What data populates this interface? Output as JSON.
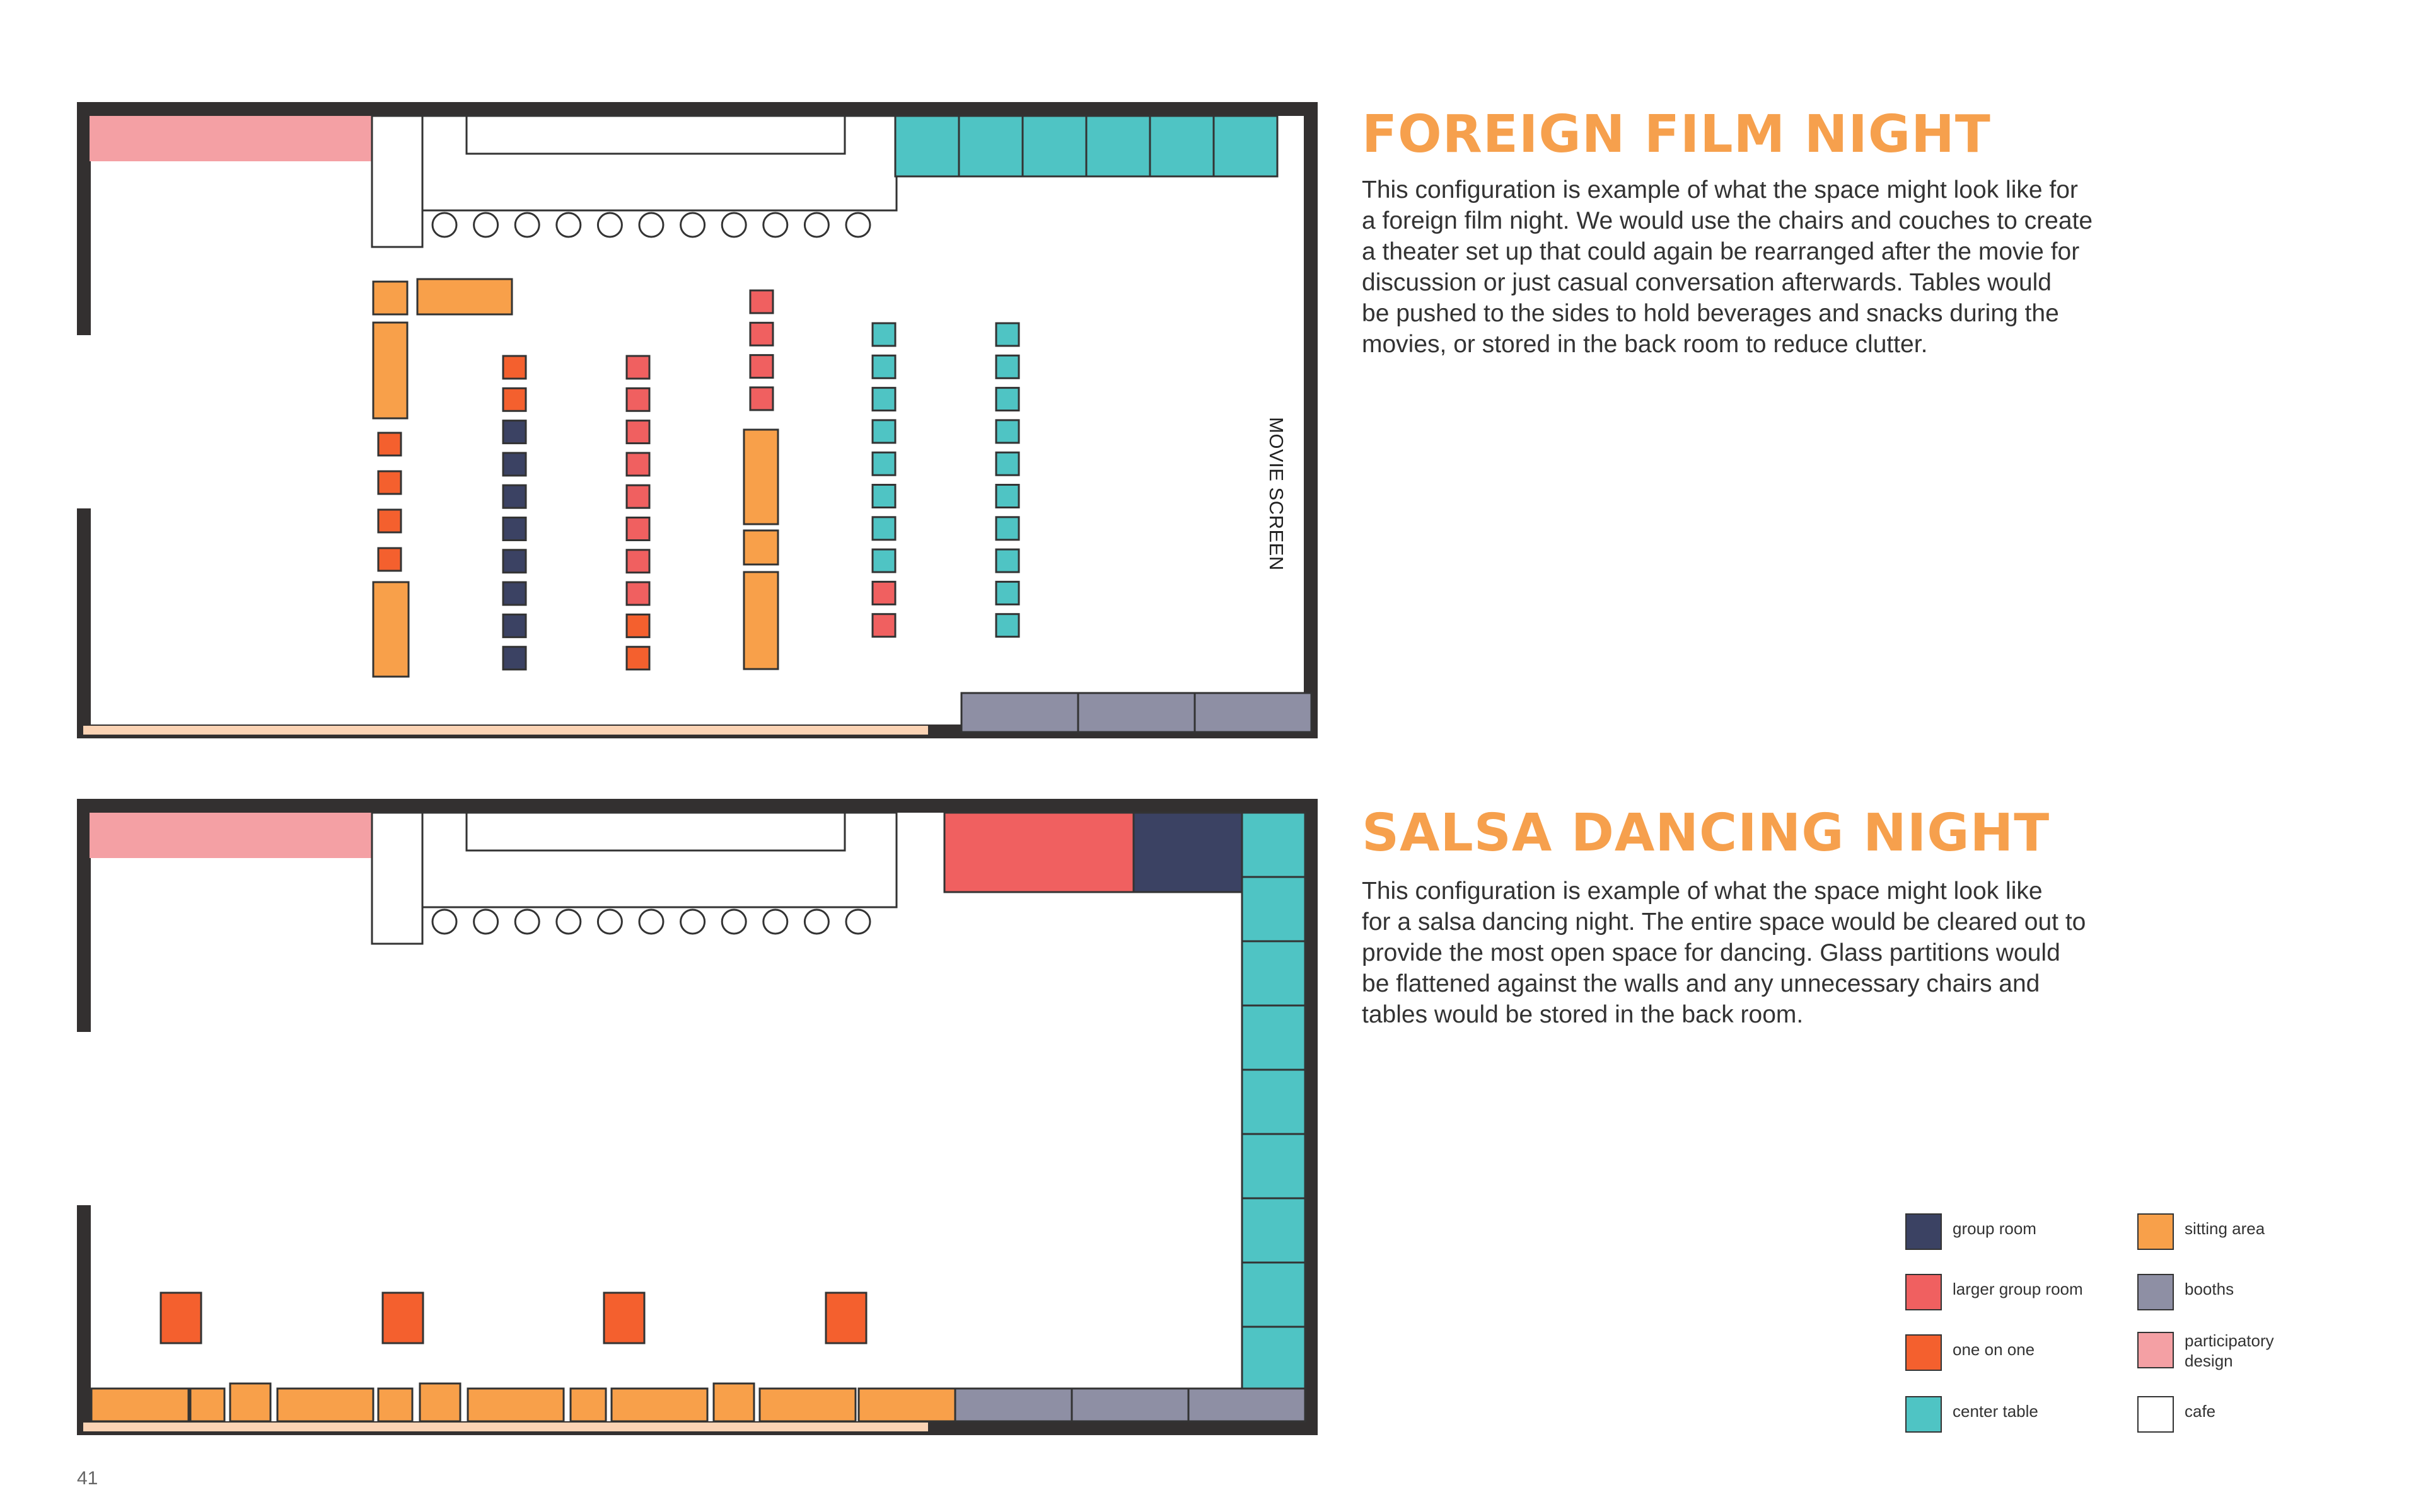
{
  "page_number": "41",
  "sections": [
    {
      "title": "FOREIGN FILM NIGHT",
      "lines": [
        "This configuration is example of what the space might look like for",
        "a foreign film night. We would use the chairs and couches to create",
        "a theater set up that could again be rearranged after the movie for",
        "discussion or just casual conversation afterwards. Tables would",
        "be pushed to the sides to hold beverages and snacks during the",
        "movies, or stored in the back room to reduce clutter."
      ],
      "plan_label": "MOVIE SCREEN"
    },
    {
      "title": "SALSA DANCING NIGHT",
      "lines": [
        "This configuration is example of what the space might look like",
        "for a salsa dancing night. The entire space would be cleared out to",
        "provide the most open space for dancing. Glass partitions would",
        "be flattened against the walls and any unnecessary chairs and",
        "tables would be stored in the back room."
      ]
    }
  ],
  "legend": [
    {
      "key": "group",
      "label": "group room",
      "color": "#3b4263"
    },
    {
      "key": "larger",
      "label": "larger group room",
      "color": "#f06060"
    },
    {
      "key": "oneonone",
      "label": "one on one",
      "color": "#f4602e"
    },
    {
      "key": "center",
      "label": "center table",
      "color": "#4fc4c4"
    },
    {
      "key": "sitting",
      "label": "sitting area",
      "color": "#f8a04a"
    },
    {
      "key": "booths",
      "label": "booths",
      "color": "#8e8fa4"
    },
    {
      "key": "participatory",
      "label": "participatory design",
      "color": "#f4a0a4"
    },
    {
      "key": "cafe",
      "label": "cafe",
      "color": "#ffffff"
    }
  ],
  "colors": {
    "title": "#f6a04d",
    "wall": "#333030",
    "glass_strip": "#fbd3b4",
    "outline": "#333333"
  }
}
